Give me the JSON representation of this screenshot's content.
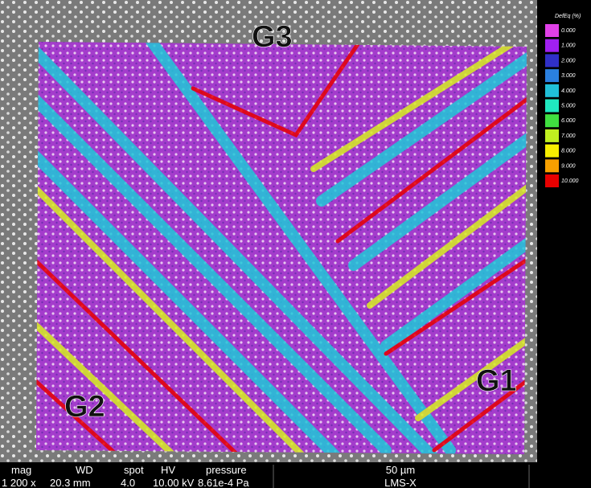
{
  "labels": {
    "g1": "G1",
    "g2": "G2",
    "g3": "G3"
  },
  "legend": {
    "title": "DefEq (%)",
    "entries": [
      {
        "label": "0.000",
        "color": "#e040e8"
      },
      {
        "label": "1.000",
        "color": "#a020f0"
      },
      {
        "label": "2.000",
        "color": "#3030c8"
      },
      {
        "label": "3.000",
        "color": "#2a80e0"
      },
      {
        "label": "4.000",
        "color": "#20c0d8"
      },
      {
        "label": "5.000",
        "color": "#20e8c0"
      },
      {
        "label": "6.000",
        "color": "#40e040"
      },
      {
        "label": "7.000",
        "color": "#c0f020"
      },
      {
        "label": "8.000",
        "color": "#f8f000"
      },
      {
        "label": "9.000",
        "color": "#f8a000"
      },
      {
        "label": "10.000",
        "color": "#e80000"
      }
    ]
  },
  "info_bar": {
    "headers": [
      "mag",
      "WD",
      "spot",
      "HV",
      "pressure"
    ],
    "values": [
      "1 200 x",
      "20.3 mm",
      "4.0",
      "10.00 kV",
      "8.61e-4 Pa"
    ],
    "scale": "50 µm",
    "instrument": "LMS-X"
  }
}
